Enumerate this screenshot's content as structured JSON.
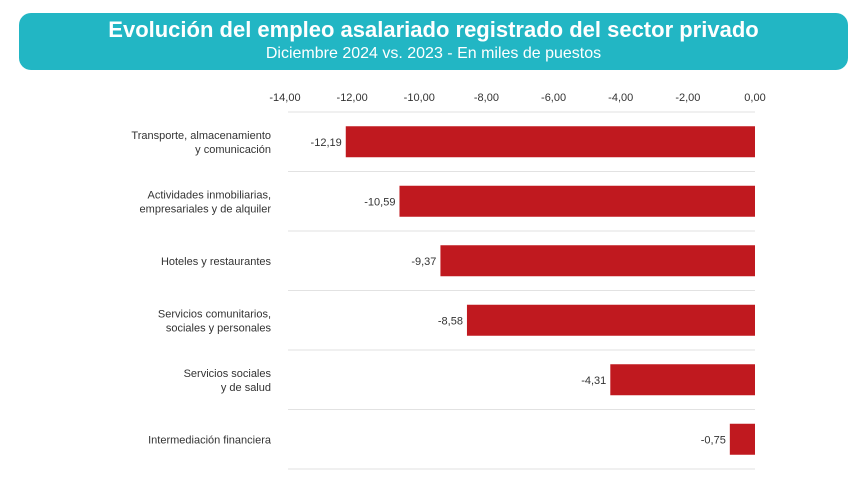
{
  "header": {
    "title": "Evolución del empleo asalariado registrado del sector privado",
    "subtitle": "Diciembre 2024 vs. 2023 - En miles de puestos"
  },
  "colors": {
    "header_bg": "#22b6c4",
    "bar": "#c0191f"
  },
  "chart_data": {
    "type": "bar",
    "orientation": "horizontal",
    "title": "Evolución del empleo asalariado registrado del sector privado",
    "subtitle": "Diciembre 2024 vs. 2023 - En miles de puestos",
    "xlim": [
      -14,
      0
    ],
    "tick_labels": [
      "-14,00",
      "-12,00",
      "-10,00",
      "-8,00",
      "-6,00",
      "-4,00",
      "-2,00",
      "0,00"
    ],
    "tick_values": [
      -14,
      -12,
      -10,
      -8,
      -6,
      -4,
      -2,
      0
    ],
    "x_axis_position": "top",
    "grid": false,
    "categories": [
      [
        "Transporte, almacenamiento",
        "y comunicación"
      ],
      [
        "Actividades inmobiliarias,",
        "empresariales y de alquiler"
      ],
      [
        "Hoteles y restaurantes"
      ],
      [
        "Servicios comunitarios,",
        "sociales y personales"
      ],
      [
        "Servicios sociales",
        "y de salud"
      ],
      [
        "Intermediación financiera"
      ]
    ],
    "values": [
      -12.19,
      -10.59,
      -9.37,
      -8.58,
      -4.31,
      -0.75
    ],
    "value_labels": [
      "-12,19",
      "-10,59",
      "-9,37",
      "-8,58",
      "-4,31",
      "-0,75"
    ]
  }
}
